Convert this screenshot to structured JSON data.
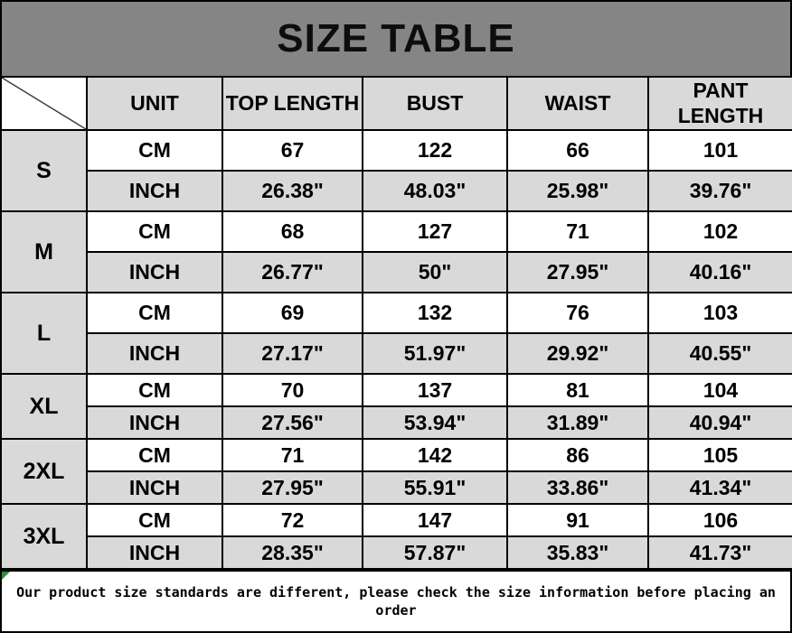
{
  "title": "SIZE TABLE",
  "table": {
    "columns": [
      "UNIT",
      "TOP LENGTH",
      "BUST",
      "WAIST",
      "PANT LENGTH"
    ],
    "unit_labels": [
      "CM",
      "INCH"
    ],
    "sizes": [
      {
        "size": "S",
        "cm": [
          "67",
          "122",
          "66",
          "101"
        ],
        "inch": [
          "26.38\"",
          "48.03\"",
          "25.98\"",
          "39.76\""
        ]
      },
      {
        "size": "M",
        "cm": [
          "68",
          "127",
          "71",
          "102"
        ],
        "inch": [
          "26.77\"",
          "50\"",
          "27.95\"",
          "40.16\""
        ]
      },
      {
        "size": "L",
        "cm": [
          "69",
          "132",
          "76",
          "103"
        ],
        "inch": [
          "27.17\"",
          "51.97\"",
          "29.92\"",
          "40.55\""
        ]
      },
      {
        "size": "XL",
        "cm": [
          "70",
          "137",
          "81",
          "104"
        ],
        "inch": [
          "27.56\"",
          "53.94\"",
          "31.89\"",
          "40.94\""
        ]
      },
      {
        "size": "2XL",
        "cm": [
          "71",
          "142",
          "86",
          "105"
        ],
        "inch": [
          "27.95\"",
          "55.91\"",
          "33.86\"",
          "41.34\""
        ]
      },
      {
        "size": "3XL",
        "cm": [
          "72",
          "147",
          "91",
          "106"
        ],
        "inch": [
          "28.35\"",
          "57.87\"",
          "35.83\"",
          "41.73\""
        ]
      }
    ]
  },
  "footer_note": "Our product size standards are different, please check the size information before placing an order",
  "colors": {
    "title_bg": "#858585",
    "header_bg": "#d9d9d9",
    "cm_row_bg": "#ffffff",
    "inch_row_bg": "#d9d9d9",
    "border": "#000000",
    "marker_green": "#2f8f2f",
    "text": "#000000"
  }
}
